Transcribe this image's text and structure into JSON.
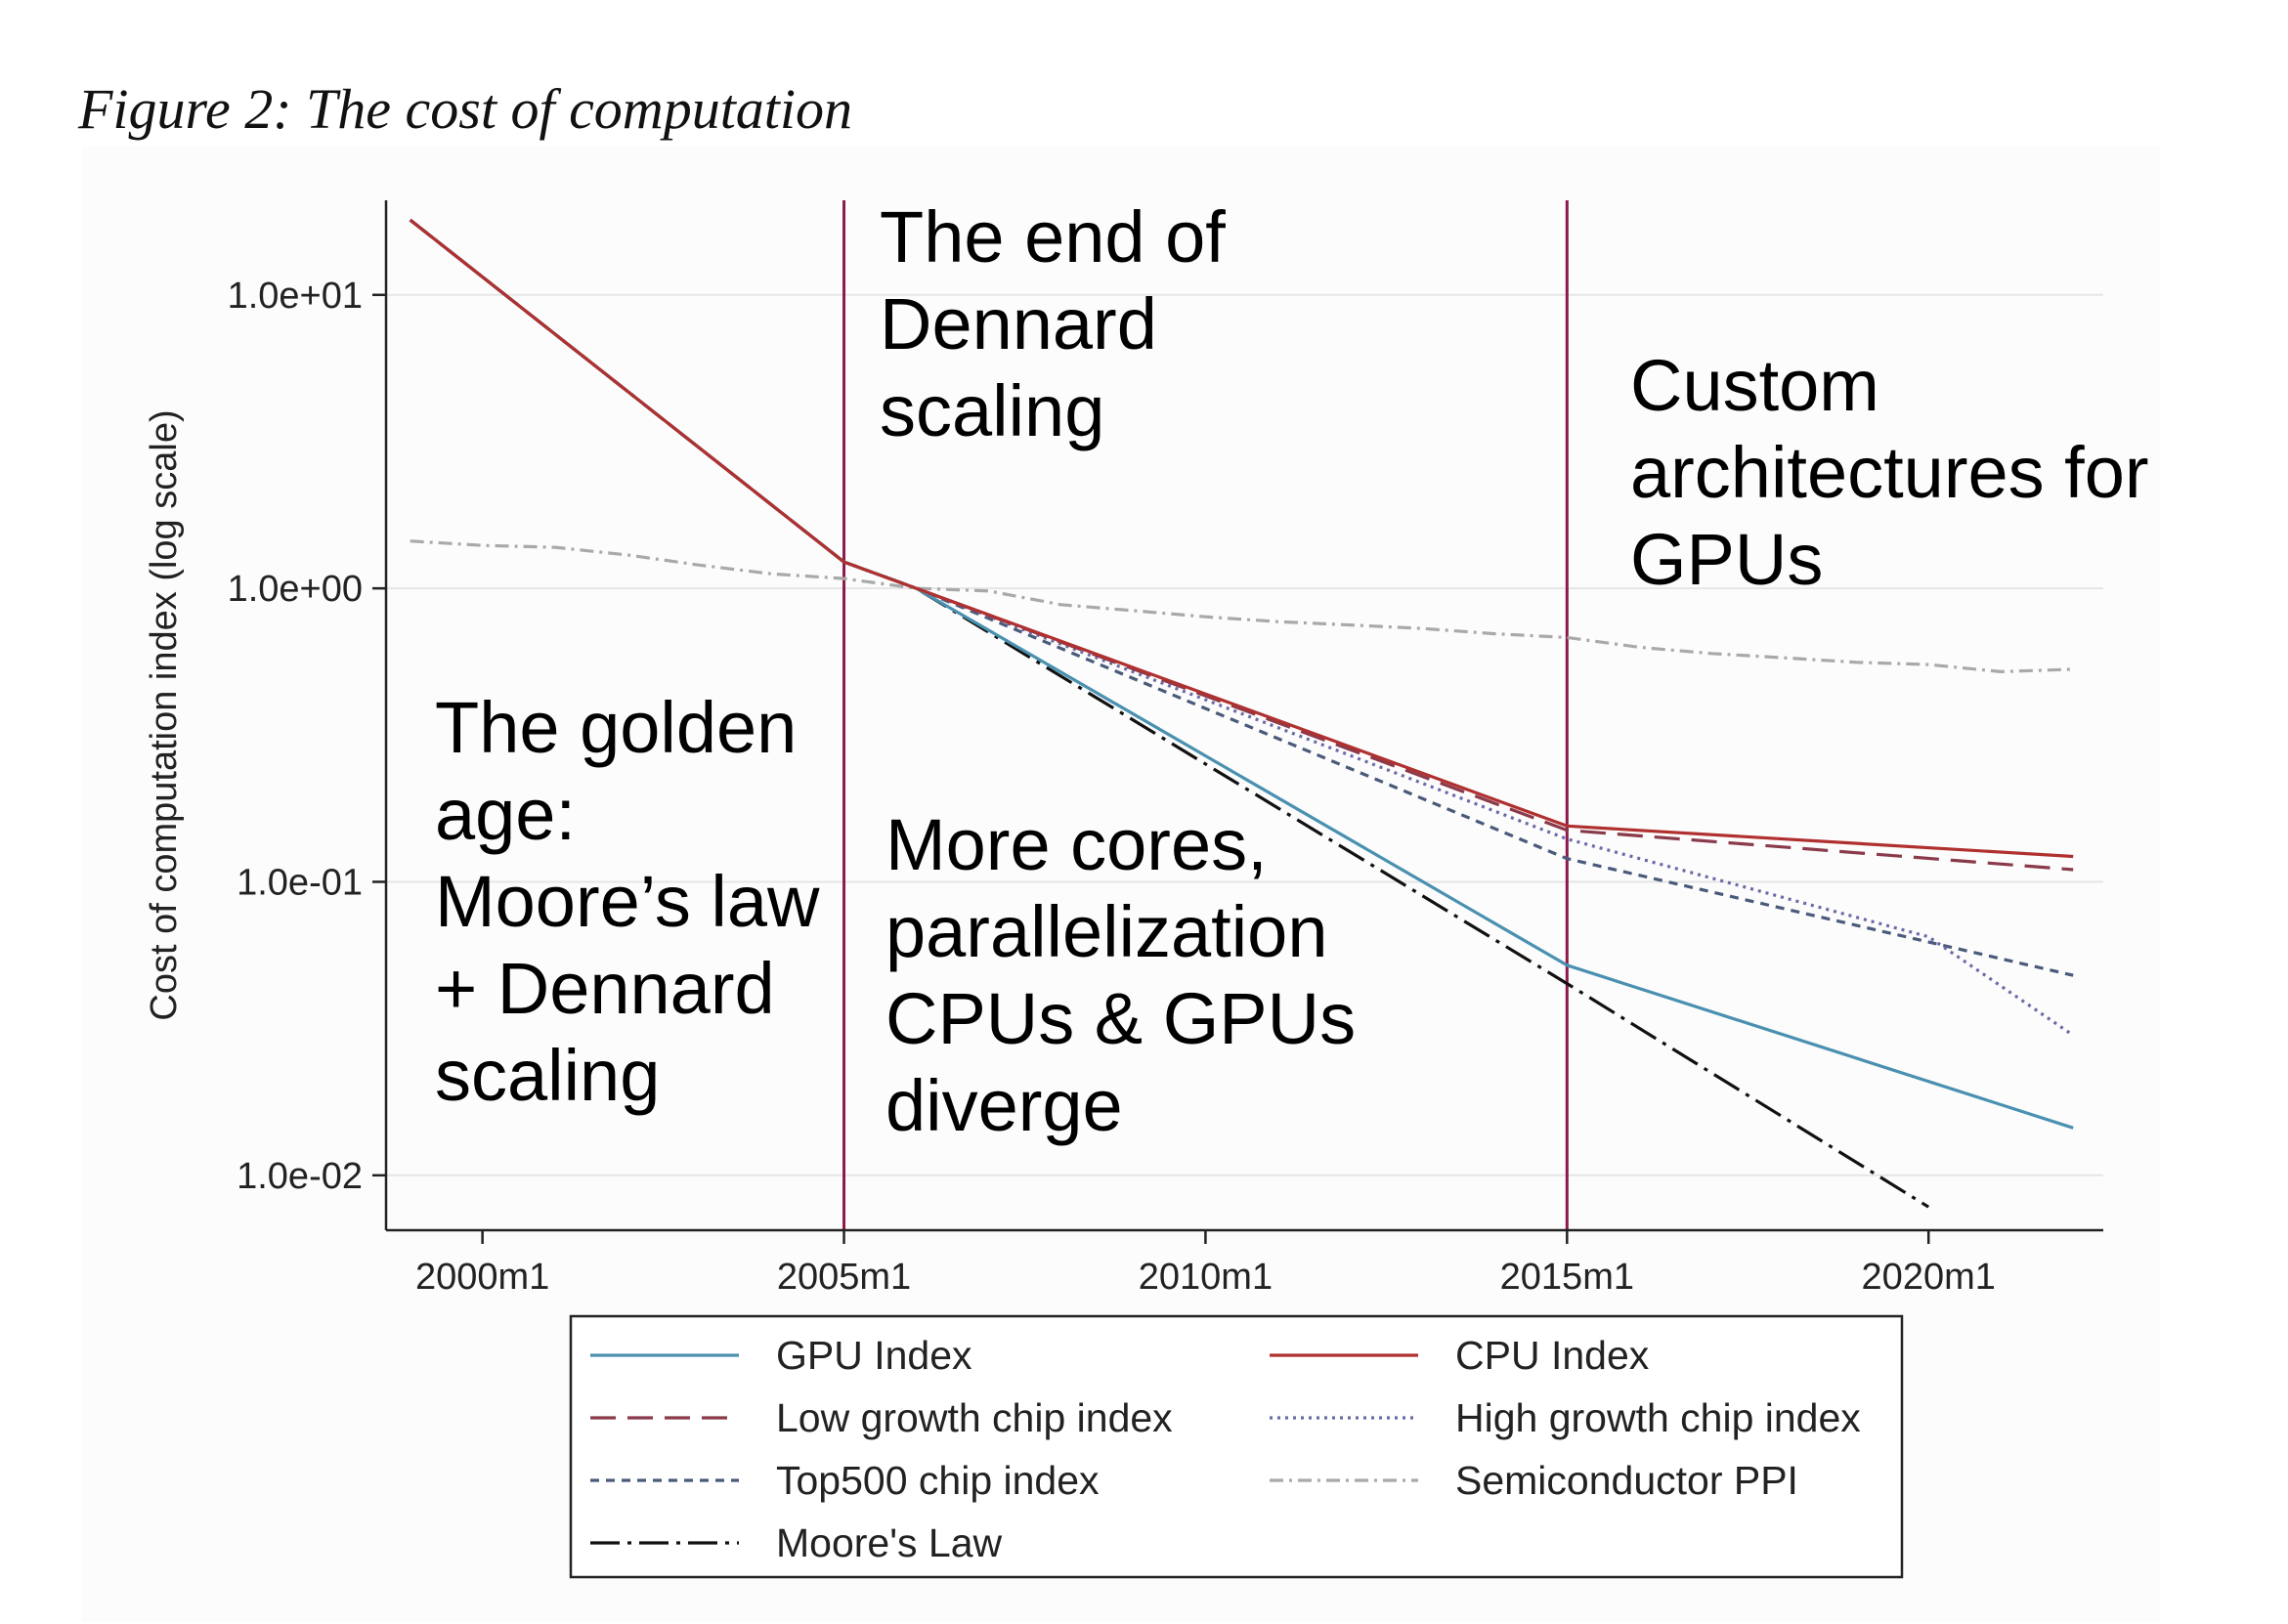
{
  "figure_title": "Figure 2: The cost of computation",
  "chart_data": {
    "type": "line",
    "ylabel": "Cost of computation index (log scale)",
    "xlabel": "",
    "y_scale": "log",
    "ylim": [
      0.0065,
      21
    ],
    "xlim": [
      "1998m9",
      "2022m6"
    ],
    "grid": true,
    "y_ticks": [
      {
        "value": 10,
        "label": "1.0e+01"
      },
      {
        "value": 1,
        "label": "1.0e+00"
      },
      {
        "value": 0.1,
        "label": "1.0e-01"
      },
      {
        "value": 0.01,
        "label": "1.0e-02"
      }
    ],
    "x_ticks": [
      {
        "value": "2000m1",
        "label": "2000m1"
      },
      {
        "value": "2005m1",
        "label": "2005m1"
      },
      {
        "value": "2010m1",
        "label": "2010m1"
      },
      {
        "value": "2015m1",
        "label": "2015m1"
      },
      {
        "value": "2020m1",
        "label": "2020m1"
      }
    ],
    "vertical_lines": [
      "2005m1",
      "2015m1"
    ],
    "annotations": [
      {
        "id": "golden",
        "lines": [
          "The golden",
          "age:",
          "Moore’s law",
          "+ Dennard",
          "scaling"
        ]
      },
      {
        "id": "dennard-end",
        "lines": [
          "The end of",
          "Dennard",
          "scaling"
        ]
      },
      {
        "id": "cores",
        "lines": [
          "More cores,",
          "parallelization",
          "CPUs & GPUs",
          "diverge"
        ]
      },
      {
        "id": "custom",
        "lines": [
          "Custom",
          "architectures for",
          "GPUs"
        ]
      }
    ],
    "legend_position": "bottom",
    "series": [
      {
        "name": "Semiconductor PPI",
        "color": "#a9a9a9",
        "dash": "14,6,3,6",
        "points": [
          [
            "1999m1",
            1.45
          ],
          [
            "2000m1",
            1.4
          ],
          [
            "2001m1",
            1.38
          ],
          [
            "2002m1",
            1.3
          ],
          [
            "2003m1",
            1.2
          ],
          [
            "2004m1",
            1.12
          ],
          [
            "2005m1",
            1.08
          ],
          [
            "2006m1",
            1.0
          ],
          [
            "2007m1",
            0.98
          ],
          [
            "2008m1",
            0.88
          ],
          [
            "2009m1",
            0.84
          ],
          [
            "2010m1",
            0.8
          ],
          [
            "2011m1",
            0.77
          ],
          [
            "2012m1",
            0.75
          ],
          [
            "2013m1",
            0.73
          ],
          [
            "2014m1",
            0.7
          ],
          [
            "2015m1",
            0.68
          ],
          [
            "2016m1",
            0.63
          ],
          [
            "2017m1",
            0.6
          ],
          [
            "2018m1",
            0.58
          ],
          [
            "2019m1",
            0.56
          ],
          [
            "2020m1",
            0.55
          ],
          [
            "2021m1",
            0.52
          ],
          [
            "2022m1",
            0.53
          ]
        ]
      },
      {
        "name": "Top500 chip index",
        "color": "#4a5a7a",
        "dash": "9,7",
        "points": [
          [
            "1999m1",
            18
          ],
          [
            "2005m1",
            1.23
          ],
          [
            "2006m1",
            1.0
          ],
          [
            "2015m1",
            0.12
          ],
          [
            "2022m1",
            0.048
          ]
        ]
      },
      {
        "name": "High growth chip index",
        "color": "#6a6aa8",
        "dash": "3,5",
        "points": [
          [
            "1999m1",
            18
          ],
          [
            "2005m1",
            1.23
          ],
          [
            "2006m1",
            1.0
          ],
          [
            "2015m1",
            0.14
          ],
          [
            "2020m1",
            0.065
          ],
          [
            "2022m1",
            0.03
          ]
        ]
      },
      {
        "name": "Low growth chip index",
        "color": "#8a3a4a",
        "dash": "26,12",
        "points": [
          [
            "1999m1",
            18
          ],
          [
            "2005m1",
            1.23
          ],
          [
            "2006m1",
            1.0
          ],
          [
            "2015m1",
            0.15
          ],
          [
            "2022m1",
            0.11
          ]
        ]
      },
      {
        "name": "Moore's Law",
        "color": "#111111",
        "dash": "30,8,4,8",
        "points": [
          [
            "1999m1",
            18
          ],
          [
            "2005m1",
            1.23
          ],
          [
            "2006m1",
            1.0
          ],
          [
            "2015m1",
            0.045
          ],
          [
            "2020m1",
            0.0078
          ]
        ]
      },
      {
        "name": "GPU Index",
        "color": "#4a90b0",
        "dash": "",
        "points": [
          [
            "1999m1",
            18
          ],
          [
            "2005m1",
            1.23
          ],
          [
            "2006m1",
            1.0
          ],
          [
            "2015m1",
            0.052
          ],
          [
            "2022m1",
            0.0145
          ]
        ]
      },
      {
        "name": "CPU Index",
        "color": "#b03030",
        "dash": "",
        "points": [
          [
            "1999m1",
            18
          ],
          [
            "2005m1",
            1.23
          ],
          [
            "2006m1",
            1.0
          ],
          [
            "2015m1",
            0.155
          ],
          [
            "2022m1",
            0.122
          ]
        ]
      }
    ],
    "legend": [
      {
        "name": "GPU Index",
        "color": "#4a90b0",
        "dash": ""
      },
      {
        "name": "CPU Index",
        "color": "#b03030",
        "dash": ""
      },
      {
        "name": "Low growth chip index",
        "color": "#8a3a4a",
        "dash": "26,12"
      },
      {
        "name": "High growth chip index",
        "color": "#6a6aa8",
        "dash": "3,5"
      },
      {
        "name": "Top500 chip index",
        "color": "#4a5a7a",
        "dash": "9,7"
      },
      {
        "name": "Semiconductor PPI",
        "color": "#a9a9a9",
        "dash": "14,6,3,6"
      },
      {
        "name": "Moore's Law",
        "color": "#111111",
        "dash": "30,8,4,8"
      }
    ]
  }
}
